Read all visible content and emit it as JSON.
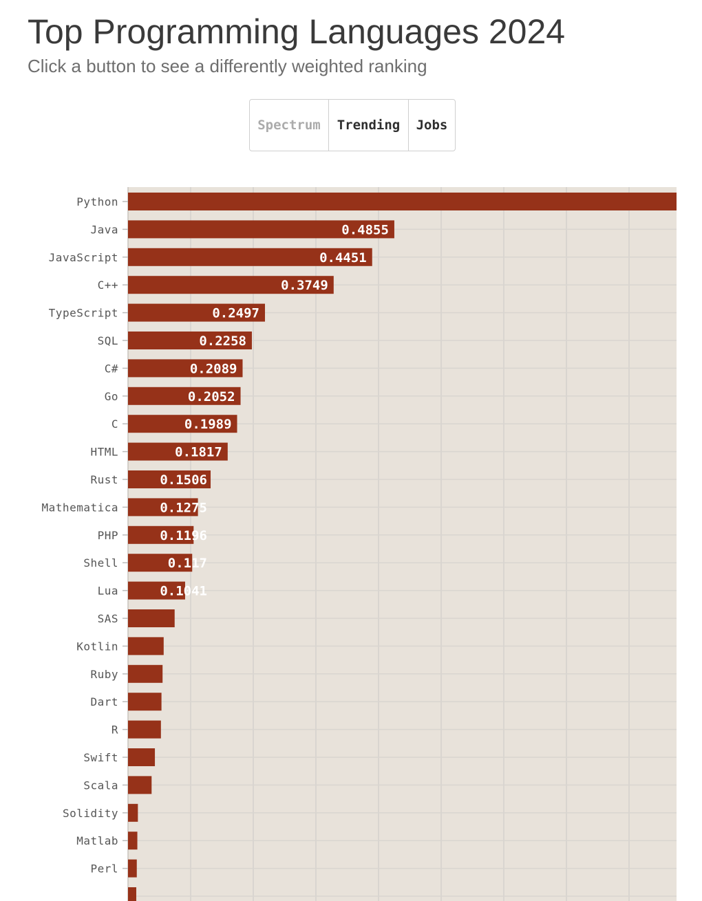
{
  "header": {
    "title": "Top Programming Languages 2024",
    "subtitle": "Click a button to see a differently weighted ranking"
  },
  "buttons": [
    {
      "label": "Spectrum",
      "active": true
    },
    {
      "label": "Trending",
      "active": false
    },
    {
      "label": "Jobs",
      "active": false
    }
  ],
  "colors": {
    "bar": "#963219",
    "plot_background": "#e8e2da",
    "grid": "#d9d5d0",
    "value_label": "#ffffff"
  },
  "chart_data": {
    "type": "bar",
    "orientation": "horizontal",
    "categories": [
      "Python",
      "Java",
      "JavaScript",
      "C++",
      "TypeScript",
      "SQL",
      "C#",
      "Go",
      "C",
      "HTML",
      "Rust",
      "Mathematica",
      "PHP",
      "Shell",
      "Lua",
      "SAS",
      "Kotlin",
      "Ruby",
      "Dart",
      "R",
      "Swift",
      "Scala",
      "Solidity",
      "Matlab",
      "Perl"
    ],
    "values": [
      1.0,
      0.4855,
      0.4451,
      0.3749,
      0.2497,
      0.2258,
      0.2089,
      0.2052,
      0.1989,
      0.1817,
      0.1506,
      0.1275,
      0.1196,
      0.117,
      0.1041,
      0.085,
      0.065,
      0.063,
      0.061,
      0.06,
      0.049,
      0.043,
      0.018,
      0.017,
      0.016
    ],
    "value_labels": [
      "",
      "0.4855",
      "0.4451",
      "0.3749",
      "0.2497",
      "0.2258",
      "0.2089",
      "0.2052",
      "0.1989",
      "0.1817",
      "0.1506",
      "0.1275",
      "0.1196",
      "0.117",
      "0.1041",
      "",
      "",
      "",
      "",
      "",
      "",
      "",
      "",
      "",
      ""
    ],
    "xlim": [
      0,
      1
    ],
    "grid": true
  }
}
